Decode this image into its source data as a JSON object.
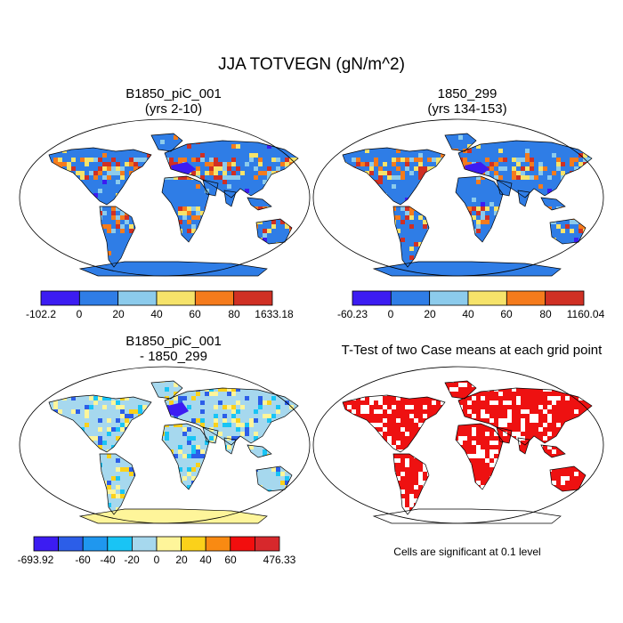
{
  "main_title": "JJA TOTVEGN (gN/m^2)",
  "panels": {
    "top_left": {
      "title_line1": "B1850_piC_001",
      "title_line2": "(yrs 2-10)"
    },
    "top_right": {
      "title_line1": "1850_299",
      "title_line2": "(yrs 134-153)"
    },
    "bottom_left": {
      "title_line1": "B1850_piC_001",
      "title_line2": "- 1850_299"
    },
    "bottom_right": {
      "title_line1": "T-Test of two Case means at each grid point"
    }
  },
  "colorbars": {
    "top_left": {
      "colors": [
        "#3c1cf2",
        "#2f7de6",
        "#8ccbec",
        "#f6e36a",
        "#f57b1c",
        "#d03024"
      ],
      "labels": [
        "-102.2",
        "0",
        "20",
        "40",
        "60",
        "80",
        "1633.18"
      ]
    },
    "top_right": {
      "colors": [
        "#3c1cf2",
        "#2f7de6",
        "#8ccbec",
        "#f6e36a",
        "#f57b1c",
        "#d03024"
      ],
      "labels": [
        "-60.23",
        "0",
        "20",
        "40",
        "60",
        "80",
        "1160.04"
      ]
    },
    "bottom_left": {
      "colors": [
        "#3c1cf2",
        "#2c5ee8",
        "#1f97ef",
        "#19c4f5",
        "#a6d8ee",
        "#fef59a",
        "#fbd11a",
        "#f98a12",
        "#f20e0e",
        "#d7282c"
      ],
      "labels": [
        "-693.92",
        "-60",
        "-40",
        "-20",
        "0",
        "20",
        "40",
        "60",
        "476.33"
      ]
    }
  },
  "significance_note": "Cells are significant at 0.1 level",
  "map_colors": {
    "ocean": "#ffffff",
    "ttest_significant": "#ee1111",
    "antarctica_top": "#2f7de6",
    "antarctica_diff": "#fef59a"
  }
}
